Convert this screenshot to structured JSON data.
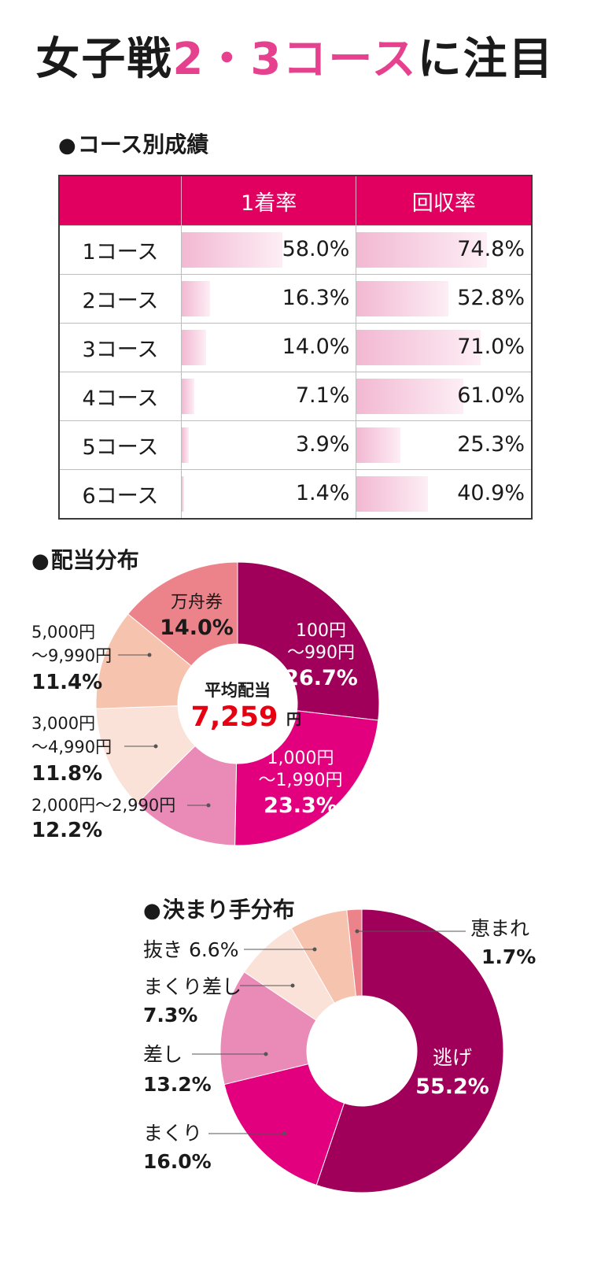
{
  "title": {
    "prefix": "女子戦",
    "accent": "2・3コース",
    "suffix": "に注目"
  },
  "course_section": {
    "heading": "コース別成績"
  },
  "pie1_section": {
    "heading": "配当分布",
    "center_label": "平均配当",
    "center_value": "7,259",
    "center_unit": "円"
  },
  "pie2_section": {
    "heading": "決まり手分布"
  },
  "colors": {
    "accent": "#e6418f",
    "header": "#e1005f",
    "center_value": "#e60012"
  },
  "chart_data": [
    {
      "type": "table",
      "title": "コース別成績",
      "columns": [
        "1着率",
        "回収率"
      ],
      "rows": [
        "1コース",
        "2コース",
        "3コース",
        "4コース",
        "5コース",
        "6コース"
      ],
      "series": [
        {
          "name": "1着率",
          "values": [
            58.0,
            16.3,
            14.0,
            7.1,
            3.9,
            1.4
          ],
          "labels": [
            "58.0%",
            "16.3%",
            "14.0%",
            "7.1%",
            "3.9%",
            "1.4%"
          ]
        },
        {
          "name": "回収率",
          "values": [
            74.8,
            52.8,
            71.0,
            61.0,
            25.3,
            40.9
          ],
          "labels": [
            "74.8%",
            "52.8%",
            "71.0%",
            "61.0%",
            "25.3%",
            "40.9%"
          ]
        }
      ]
    },
    {
      "type": "pie",
      "title": "配当分布",
      "slices": [
        {
          "label": [
            "100円",
            "～990円"
          ],
          "value": 26.7,
          "value_label": "26.7%",
          "color": "#a0005a"
        },
        {
          "label": [
            "1,000円",
            "～1,990円"
          ],
          "value": 23.3,
          "value_label": "23.3%",
          "color": "#e3007f"
        },
        {
          "label": [
            "2,000円～2,990円"
          ],
          "value": 12.2,
          "value_label": "12.2%",
          "color": "#ea8bb7"
        },
        {
          "label": [
            "3,000円",
            "～4,990円"
          ],
          "value": 11.8,
          "value_label": "11.8%",
          "color": "#fbe2d8"
        },
        {
          "label": [
            "5,000円",
            "～9,990円"
          ],
          "value": 11.4,
          "value_label": "11.4%",
          "color": "#f6c3ae"
        },
        {
          "label": [
            "万舟券"
          ],
          "value": 14.0,
          "value_label": "14.0%",
          "color": "#ec838a"
        }
      ]
    },
    {
      "type": "pie",
      "title": "決まり手分布",
      "slices": [
        {
          "label": [
            "逃げ"
          ],
          "value": 55.2,
          "value_label": "55.2%",
          "color": "#a0005a"
        },
        {
          "label": [
            "まくり"
          ],
          "value": 16.0,
          "value_label": "16.0%",
          "color": "#e3007f"
        },
        {
          "label": [
            "差し"
          ],
          "value": 13.2,
          "value_label": "13.2%",
          "color": "#ea8bb7"
        },
        {
          "label": [
            "まくり差し"
          ],
          "value": 7.3,
          "value_label": "7.3%",
          "color": "#fbe2d8"
        },
        {
          "label": [
            "抜き"
          ],
          "value": 6.6,
          "value_label": "6.6%",
          "color": "#f6c3ae"
        },
        {
          "label": [
            "恵まれ"
          ],
          "value": 1.7,
          "value_label": "1.7%",
          "color": "#ec838a"
        }
      ]
    }
  ]
}
